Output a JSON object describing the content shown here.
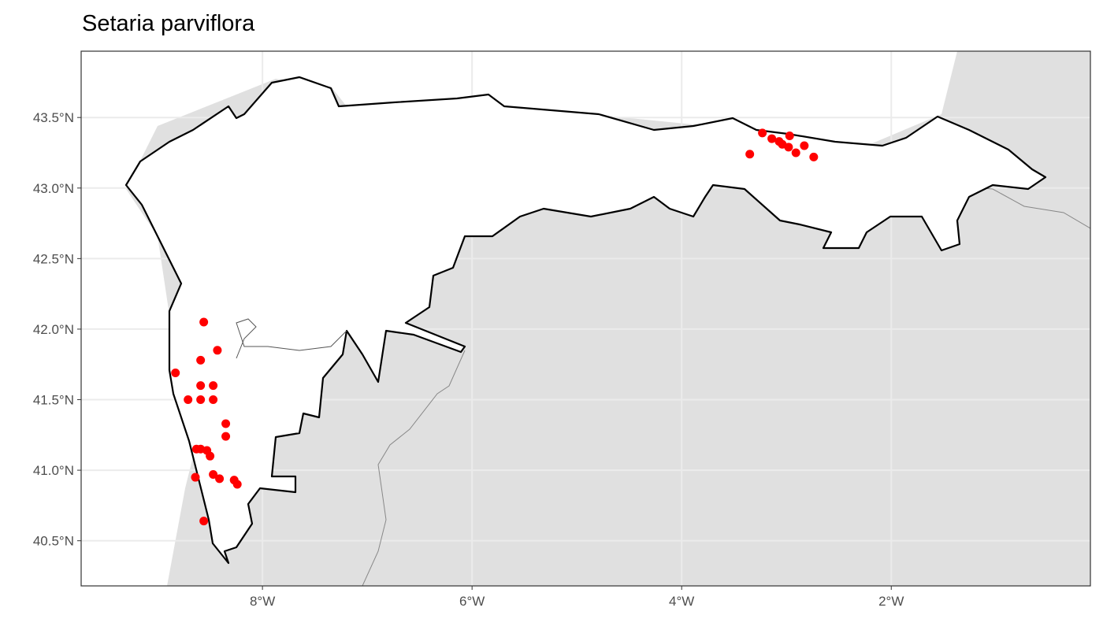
{
  "title": "Setaria parviflora",
  "chart_data": {
    "type": "scatter",
    "title": "Setaria parviflora",
    "xlabel": "",
    "ylabel": "",
    "xlim": [
      -9.73,
      -0.1
    ],
    "ylim": [
      40.18,
      43.97
    ],
    "grid": true,
    "x_ticks": [
      {
        "value": -8,
        "label": "8°W"
      },
      {
        "value": -6,
        "label": "6°W"
      },
      {
        "value": -4,
        "label": "4°W"
      },
      {
        "value": -2,
        "label": "2°W"
      }
    ],
    "y_ticks": [
      {
        "value": 43.5,
        "label": "43.5°N"
      },
      {
        "value": 43.0,
        "label": "43.0°N"
      },
      {
        "value": 42.5,
        "label": "42.5°N"
      },
      {
        "value": 42.0,
        "label": "42.0°N"
      },
      {
        "value": 41.5,
        "label": "41.5°N"
      },
      {
        "value": 41.0,
        "label": "41.0°N"
      },
      {
        "value": 40.5,
        "label": "40.5°N"
      }
    ],
    "colors": {
      "points": "#ff0000",
      "land": "#e0e0e0",
      "region_outline": "#000000",
      "grid": "#ebebeb"
    },
    "points": [
      [
        -3.23,
        43.39
      ],
      [
        -3.14,
        43.35
      ],
      [
        -3.07,
        43.33
      ],
      [
        -3.04,
        43.31
      ],
      [
        -2.97,
        43.37
      ],
      [
        -2.98,
        43.29
      ],
      [
        -2.91,
        43.25
      ],
      [
        -2.83,
        43.3
      ],
      [
        -2.74,
        43.22
      ],
      [
        -3.35,
        43.24
      ],
      [
        -8.56,
        42.05
      ],
      [
        -8.43,
        41.85
      ],
      [
        -8.59,
        41.78
      ],
      [
        -8.83,
        41.69
      ],
      [
        -8.59,
        41.6
      ],
      [
        -8.47,
        41.6
      ],
      [
        -8.71,
        41.5
      ],
      [
        -8.59,
        41.5
      ],
      [
        -8.47,
        41.5
      ],
      [
        -8.35,
        41.33
      ],
      [
        -8.35,
        41.24
      ],
      [
        -8.63,
        41.15
      ],
      [
        -8.59,
        41.15
      ],
      [
        -8.53,
        41.14
      ],
      [
        -8.5,
        41.1
      ],
      [
        -8.64,
        40.95
      ],
      [
        -8.47,
        40.97
      ],
      [
        -8.41,
        40.94
      ],
      [
        -8.27,
        40.93
      ],
      [
        -8.24,
        40.9
      ],
      [
        -8.56,
        40.64
      ]
    ]
  }
}
